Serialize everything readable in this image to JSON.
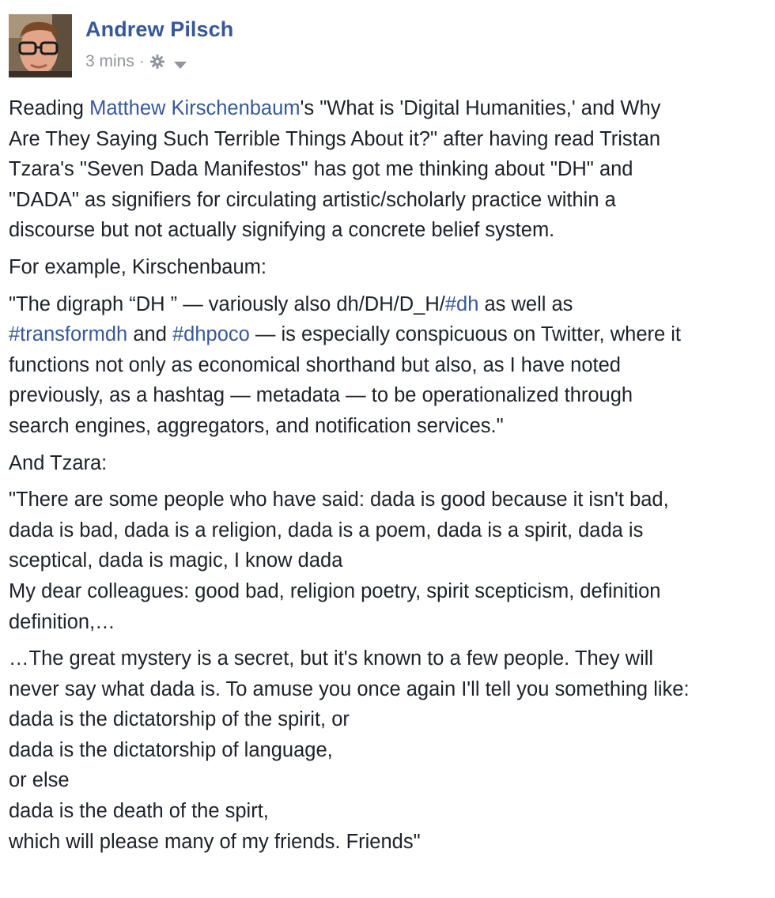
{
  "post": {
    "author_name": "Andrew Pilsch",
    "timestamp": "3 mins",
    "separator": "·",
    "privacy_icon": "gear-icon",
    "menu_icon": "chevron-down-icon",
    "colors": {
      "author": "#365899",
      "link": "#365899",
      "meta": "#90949c",
      "text": "#1d2129"
    }
  },
  "body": {
    "p1": {
      "pre": "Reading ",
      "link": "Matthew Kirschenbaum",
      "l1_rest": "'s \"What is 'Digital Humanities,' and Why",
      "l2": "Are They Saying Such Terrible Things About it?\" after having read Tristan",
      "l3": "Tzara's \"Seven Dada Manifestos\" has got me thinking about \"DH\" and",
      "l4": "\"DADA\" as signifiers for circulating artistic/scholarly practice within a",
      "l5": "discourse but not actually signifying a concrete belief system."
    },
    "p2": "For example, Kirschenbaum:",
    "p3": {
      "l1_pre": "\"The digraph “DH ” — variously also dh/DH/D_H/",
      "l1_link": "#dh",
      "l1_post": " as well as",
      "l2_link1": "#transformdh",
      "l2_mid": " and ",
      "l2_link2": "#dhpoco",
      "l2_post": " — is especially conspicuous on Twitter, where it",
      "l3": "functions not only as economical shorthand but also, as I have noted",
      "l4": "previously, as a hashtag — metadata — to be operationalized through",
      "l5": "search engines, aggregators, and notification services.\""
    },
    "p4": "And Tzara:",
    "p5": {
      "l1": "\"There are some people who have said: dada is good because it isn't bad,",
      "l2": "dada is bad, dada is a religion, dada is a poem, dada is a spirit, dada is",
      "l3": "sceptical, dada is magic, I know dada",
      "l4": "My dear colleagues: good bad, religion poetry, spirit scepticism, definition",
      "l5": "definition,…"
    },
    "p6": {
      "l1": "…The great mystery is a secret, but it's known to a few people. They will",
      "l2": "never say what dada is. To amuse you once again I'll tell you something like:",
      "l3": "dada is the dictatorship of the spirit, or",
      "l4": "dada is the dictatorship of language,",
      "l5": "or else",
      "l6": "dada is the death of the spirt,",
      "l7": "which will please many of my friends. Friends\""
    }
  }
}
